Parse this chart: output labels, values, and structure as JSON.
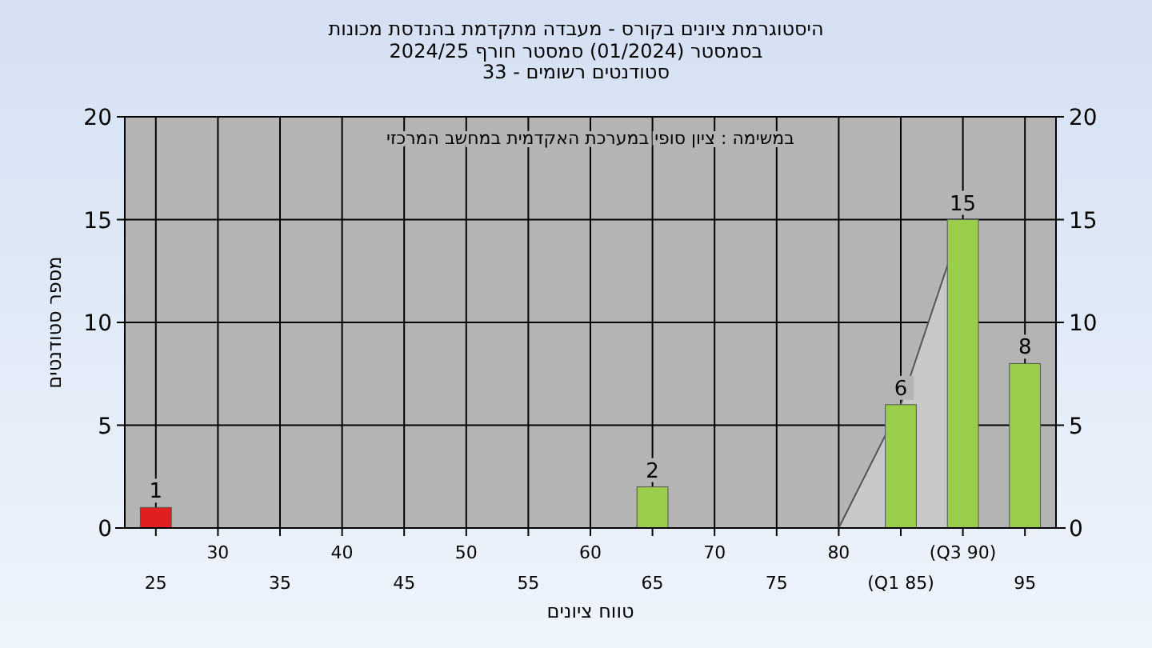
{
  "chart_data": {
    "type": "bar",
    "title": "היסטוגרמת ציונים בקורס - מעבדה מתקדמת בהנדסת מכונות",
    "subtitle": "בסמסטר (01/2024) סמסטר חורף 2024/25\nסטודנטים רשומים - 33",
    "xlabel": "טווח ציונים",
    "ylabel": "מספר סטודנטים",
    "annotations": [
      "במשימה : ציון סופי במערכת האקדמית במחשב המרכזי"
    ],
    "categories": [
      "25",
      "30",
      "35",
      "40",
      "45",
      "50",
      "55",
      "60",
      "65",
      "70",
      "75",
      "80",
      "(Q1 85)",
      "(Q3 90)",
      "95"
    ],
    "series": [
      {
        "type": "area",
        "color": "#c8c8c8",
        "values": [
          null,
          null,
          null,
          null,
          null,
          null,
          null,
          null,
          null,
          null,
          null,
          0,
          6,
          15,
          null
        ]
      },
      {
        "values": [
          1,
          null,
          null,
          null,
          null,
          null,
          null,
          null,
          2,
          null,
          null,
          null,
          6,
          15,
          8
        ],
        "value_labels": [
          "1",
          null,
          null,
          null,
          null,
          null,
          null,
          null,
          "2",
          null,
          null,
          null,
          "6",
          "15",
          "8"
        ],
        "colors": [
          "#e02020",
          "#9acd4a",
          "#9acd4a",
          "#9acd4a",
          "#9acd4a",
          "#9acd4a",
          "#9acd4a",
          "#9acd4a",
          "#9acd4a",
          "#9acd4a",
          "#9acd4a",
          "#9acd4a",
          "#9acd4a",
          "#9acd4a",
          "#9acd4a"
        ]
      }
    ],
    "ylim": [
      0,
      20
    ],
    "yticks": [
      0,
      5,
      10,
      15,
      20
    ],
    "y2lim": [
      0,
      20
    ],
    "y2ticks": [
      0,
      5,
      10,
      15,
      20
    ],
    "grid": true
  }
}
